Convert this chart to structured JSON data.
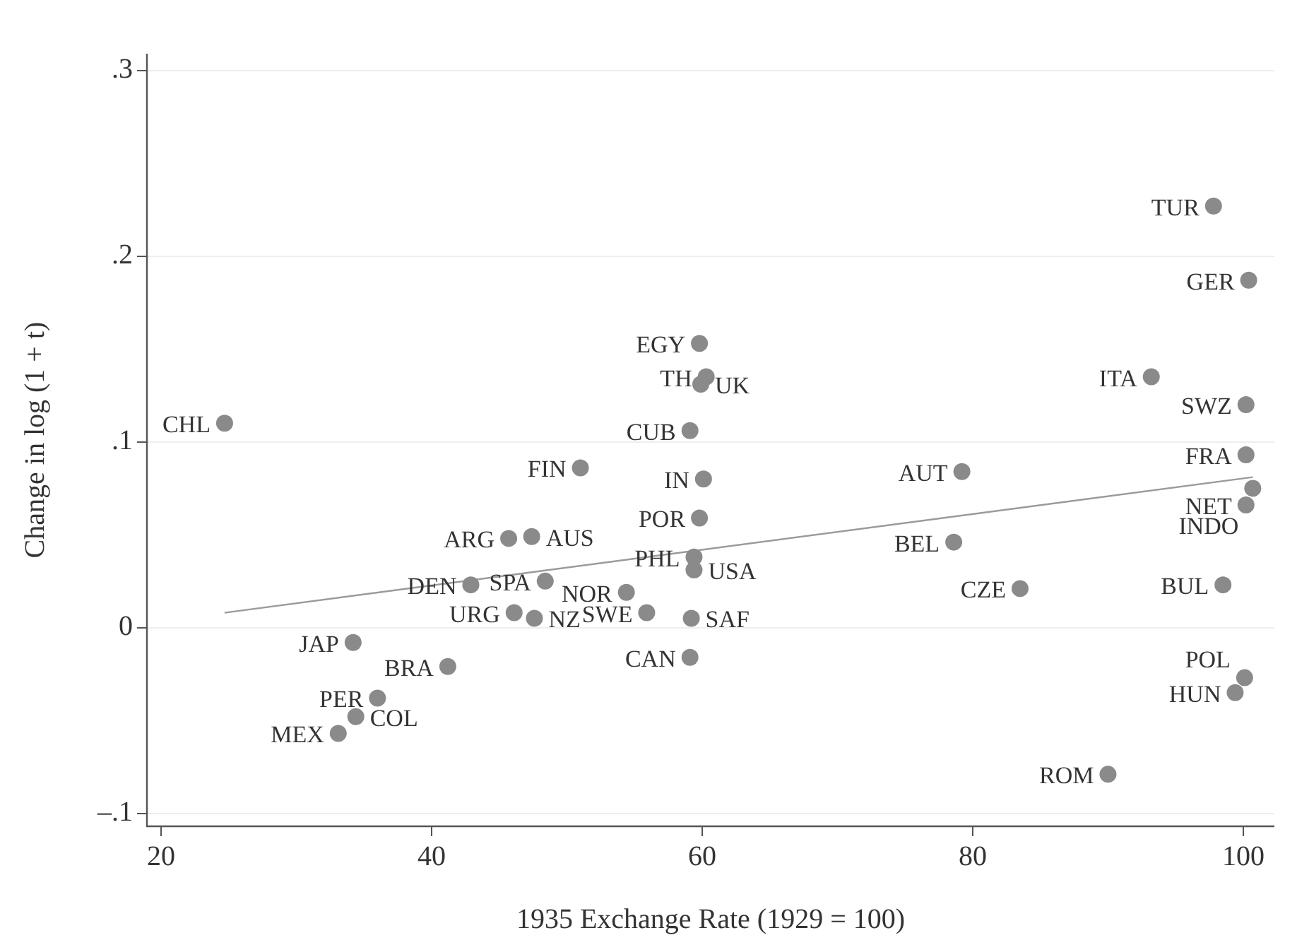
{
  "chart_data": {
    "type": "scatter",
    "xlabel": "1935 Exchange Rate (1929 = 100)",
    "ylabel": "Change in log (1 + t)",
    "xlim": [
      18.96,
      102.3
    ],
    "xticks": [
      20,
      40,
      60,
      80,
      100
    ],
    "ylim": [
      -0.107,
      0.309
    ],
    "yticks": [
      {
        "value": -0.1,
        "label": "–.1"
      },
      {
        "value": 0,
        "label": "0"
      },
      {
        "value": 0.1,
        "label": ".1"
      },
      {
        "value": 0.2,
        "label": ".2"
      },
      {
        "value": 0.3,
        "label": ".3"
      }
    ],
    "grid": "y",
    "marker": "circle",
    "series": [
      {
        "color": "#8a8a8a",
        "x": [
          24.7,
          97.8,
          100.4,
          59.8,
          60.3,
          59.9,
          93.2,
          59.1,
          100.2,
          51.0,
          79.2,
          100.2,
          60.1,
          100.7,
          100.2,
          59.8,
          47.4,
          45.7,
          78.6,
          59.4,
          59.4,
          48.4,
          42.9,
          83.5,
          54.4,
          98.5,
          46.1,
          47.6,
          55.9,
          59.2,
          59.1,
          34.2,
          41.2,
          36.0,
          34.4,
          33.1,
          100.1,
          99.4,
          90.0
        ],
        "values": [
          0.11,
          0.227,
          0.187,
          0.153,
          0.135,
          0.131,
          0.135,
          0.106,
          0.12,
          0.086,
          0.084,
          0.093,
          0.08,
          0.075,
          0.066,
          0.059,
          0.049,
          0.048,
          0.046,
          0.038,
          0.031,
          0.025,
          0.023,
          0.021,
          0.019,
          0.023,
          0.008,
          0.005,
          0.008,
          0.005,
          -0.016,
          -0.008,
          -0.021,
          -0.038,
          -0.048,
          -0.057,
          -0.027,
          -0.035,
          -0.079
        ]
      },
      {
        "type": "line",
        "color": "#9a9a9a",
        "marker": "none",
        "x": [
          24.7,
          100.7
        ],
        "values": [
          0.008,
          0.081
        ]
      }
    ],
    "annotations": [
      {
        "text": "CHL",
        "x": 24.7,
        "y": 0.11
      },
      {
        "text": "TUR",
        "x": 97.8,
        "y": 0.227
      },
      {
        "text": "GER",
        "x": 100.4,
        "y": 0.187
      },
      {
        "text": "EGY",
        "x": 59.8,
        "y": 0.153
      },
      {
        "text": "TH",
        "x": 60.3,
        "y": 0.135
      },
      {
        "text": "UK",
        "x": 59.9,
        "y": 0.131
      },
      {
        "text": "ITA",
        "x": 93.2,
        "y": 0.135
      },
      {
        "text": "CUB",
        "x": 59.1,
        "y": 0.106
      },
      {
        "text": "SWZ",
        "x": 100.2,
        "y": 0.12
      },
      {
        "text": "FIN",
        "x": 51.0,
        "y": 0.086
      },
      {
        "text": "AUT",
        "x": 79.2,
        "y": 0.084
      },
      {
        "text": "FRA",
        "x": 100.2,
        "y": 0.093
      },
      {
        "text": "IN",
        "x": 60.1,
        "y": 0.08
      },
      {
        "text": "INDO",
        "x": 100.7,
        "y": 0.075
      },
      {
        "text": "NET",
        "x": 100.2,
        "y": 0.066
      },
      {
        "text": "POR",
        "x": 59.8,
        "y": 0.059
      },
      {
        "text": "AUS",
        "x": 47.4,
        "y": 0.049
      },
      {
        "text": "ARG",
        "x": 45.7,
        "y": 0.048
      },
      {
        "text": "BEL",
        "x": 78.6,
        "y": 0.046
      },
      {
        "text": "PHL",
        "x": 59.4,
        "y": 0.038
      },
      {
        "text": "USA",
        "x": 59.4,
        "y": 0.031
      },
      {
        "text": "SPA",
        "x": 48.4,
        "y": 0.025
      },
      {
        "text": "DEN",
        "x": 42.9,
        "y": 0.023
      },
      {
        "text": "CZE",
        "x": 83.5,
        "y": 0.021
      },
      {
        "text": "NOR",
        "x": 54.4,
        "y": 0.019
      },
      {
        "text": "BUL",
        "x": 98.5,
        "y": 0.023
      },
      {
        "text": "URG",
        "x": 46.1,
        "y": 0.008
      },
      {
        "text": "NZ",
        "x": 47.6,
        "y": 0.005
      },
      {
        "text": "SWE",
        "x": 55.9,
        "y": 0.008
      },
      {
        "text": "SAF",
        "x": 59.2,
        "y": 0.005
      },
      {
        "text": "CAN",
        "x": 59.1,
        "y": -0.016
      },
      {
        "text": "JAP",
        "x": 34.2,
        "y": -0.008
      },
      {
        "text": "BRA",
        "x": 41.2,
        "y": -0.021
      },
      {
        "text": "PER",
        "x": 36.0,
        "y": -0.038
      },
      {
        "text": "COL",
        "x": 34.4,
        "y": -0.048
      },
      {
        "text": "MEX",
        "x": 33.1,
        "y": -0.057
      },
      {
        "text": "POL",
        "x": 100.1,
        "y": -0.027
      },
      {
        "text": "HUN",
        "x": 99.4,
        "y": -0.035
      },
      {
        "text": "ROM",
        "x": 90.0,
        "y": -0.079
      }
    ]
  }
}
